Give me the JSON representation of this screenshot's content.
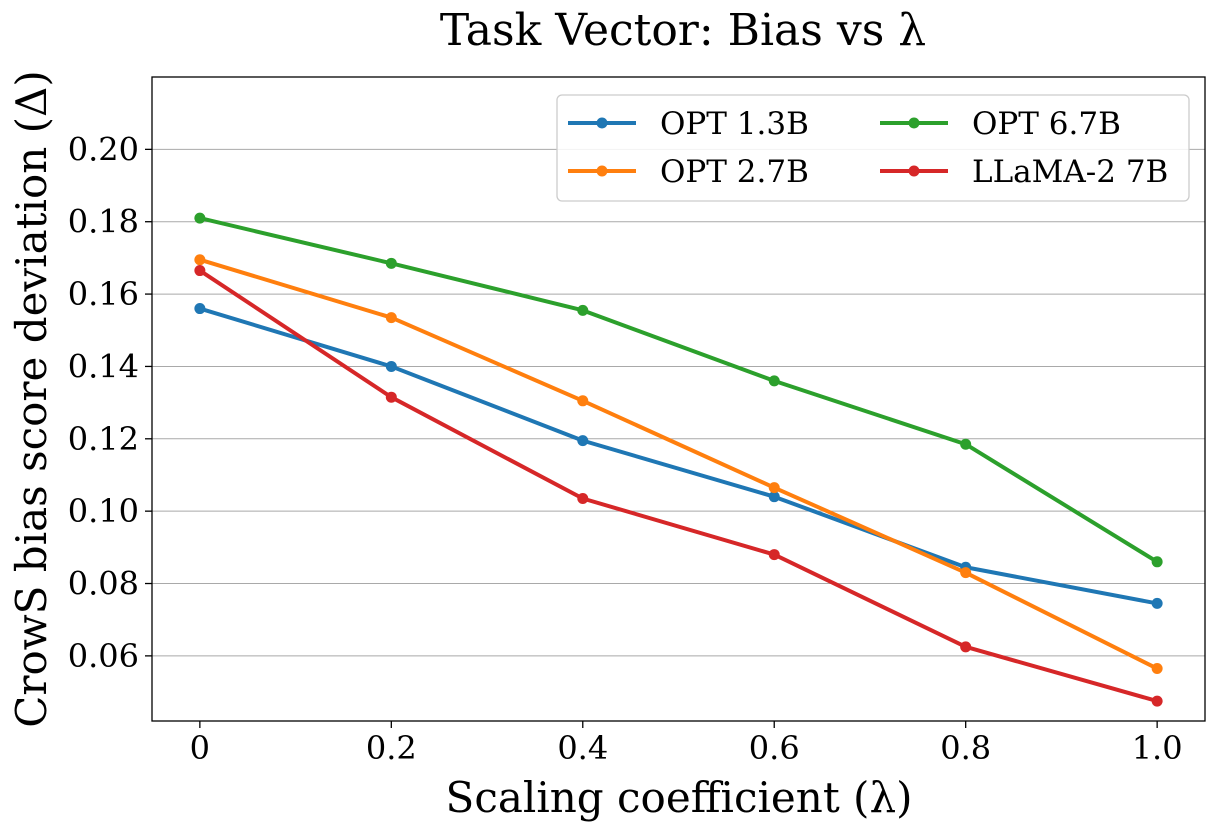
{
  "chart_data": {
    "type": "line",
    "title": "Task Vector: Bias vs λ",
    "xlabel": "Scaling coefficient (λ)",
    "ylabel": "CrowS bias score deviation (Δ)",
    "x": [
      0,
      0.2,
      0.4,
      0.6,
      0.8,
      1.0
    ],
    "x_tick_labels": [
      "0",
      "0.2",
      "0.4",
      "0.6",
      "0.8",
      "1.0"
    ],
    "y_ticks": [
      "0.06",
      "0.08",
      "0.10",
      "0.12",
      "0.14",
      "0.16",
      "0.18",
      "0.20"
    ],
    "xlim": [
      -0.05,
      1.05
    ],
    "ylim": [
      0.042,
      0.22
    ],
    "grid": "horizontal",
    "legend_position": "top-right",
    "legend_columns": 2,
    "series": [
      {
        "name": "OPT 1.3B",
        "color": "#1f77b4",
        "values": [
          0.156,
          0.14,
          0.1195,
          0.104,
          0.0845,
          0.0745
        ]
      },
      {
        "name": "OPT 2.7B",
        "color": "#ff7f0e",
        "values": [
          0.1695,
          0.1535,
          0.1305,
          0.1065,
          0.083,
          0.0565
        ]
      },
      {
        "name": "OPT 6.7B",
        "color": "#2ca02c",
        "values": [
          0.181,
          0.1685,
          0.1555,
          0.136,
          0.1185,
          0.086
        ]
      },
      {
        "name": "LLaMA-2 7B",
        "color": "#d62728",
        "values": [
          0.1665,
          0.1315,
          0.1035,
          0.088,
          0.0625,
          0.0475
        ]
      }
    ]
  }
}
